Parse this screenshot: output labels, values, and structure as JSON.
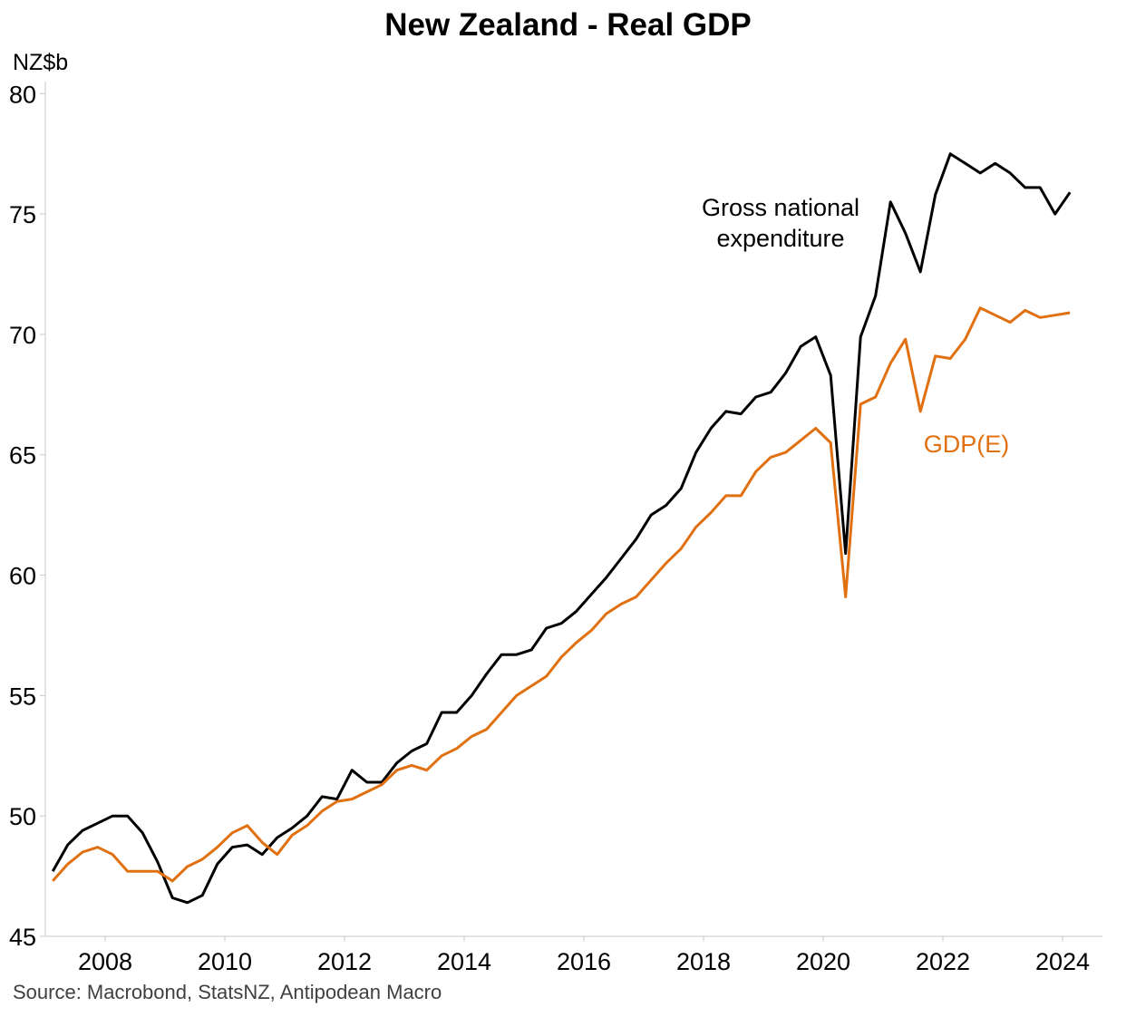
{
  "title": "New Zealand - Real GDP",
  "unit_label": "NZ$b",
  "source": "Source: Macrobond, StatsNZ, Antipodean Macro",
  "colors": {
    "gne": "#000000",
    "gdp": "#E07010",
    "axis": "#c8c8c8"
  },
  "annotations": {
    "gne_line1": "Gross national",
    "gne_line2": "expenditure",
    "gdp": "GDP(E)"
  },
  "chart_data": {
    "type": "line",
    "title": "New Zealand - Real GDP",
    "ylabel": "NZ$b",
    "xlabel": "",
    "ylim": [
      45,
      80.5
    ],
    "xlim": [
      "2007-01",
      "2024-09"
    ],
    "y_ticks": [
      45,
      50,
      55,
      60,
      65,
      70,
      75,
      80
    ],
    "x_ticks": [
      "2008",
      "2010",
      "2012",
      "2014",
      "2016",
      "2018",
      "2020",
      "2022",
      "2024"
    ],
    "x": [
      "2007Q1",
      "2007Q2",
      "2007Q3",
      "2007Q4",
      "2008Q1",
      "2008Q2",
      "2008Q3",
      "2008Q4",
      "2009Q1",
      "2009Q2",
      "2009Q3",
      "2009Q4",
      "2010Q1",
      "2010Q2",
      "2010Q3",
      "2010Q4",
      "2011Q1",
      "2011Q2",
      "2011Q3",
      "2011Q4",
      "2012Q1",
      "2012Q2",
      "2012Q3",
      "2012Q4",
      "2013Q1",
      "2013Q2",
      "2013Q3",
      "2013Q4",
      "2014Q1",
      "2014Q2",
      "2014Q3",
      "2014Q4",
      "2015Q1",
      "2015Q2",
      "2015Q3",
      "2015Q4",
      "2016Q1",
      "2016Q2",
      "2016Q3",
      "2016Q4",
      "2017Q1",
      "2017Q2",
      "2017Q3",
      "2017Q4",
      "2018Q1",
      "2018Q2",
      "2018Q3",
      "2018Q4",
      "2019Q1",
      "2019Q2",
      "2019Q3",
      "2019Q4",
      "2020Q1",
      "2020Q2",
      "2020Q3",
      "2020Q4",
      "2021Q1",
      "2021Q2",
      "2021Q3",
      "2021Q4",
      "2022Q1",
      "2022Q2",
      "2022Q3",
      "2022Q4",
      "2023Q1",
      "2023Q2",
      "2023Q3",
      "2023Q4",
      "2024Q1"
    ],
    "series": [
      {
        "name": "Gross national expenditure",
        "values": [
          47.7,
          48.8,
          49.4,
          49.7,
          50.0,
          50.0,
          49.3,
          48.1,
          46.6,
          46.4,
          46.7,
          48.0,
          48.7,
          48.8,
          48.4,
          49.1,
          49.5,
          50.0,
          50.8,
          50.7,
          51.9,
          51.4,
          51.4,
          52.2,
          52.7,
          53.0,
          54.3,
          54.3,
          55.0,
          55.9,
          56.7,
          56.7,
          56.9,
          57.8,
          58.0,
          58.5,
          59.2,
          59.9,
          60.7,
          61.5,
          62.5,
          62.9,
          63.6,
          65.1,
          66.1,
          66.8,
          66.7,
          67.4,
          67.6,
          68.4,
          69.5,
          69.9,
          68.3,
          60.9,
          69.9,
          71.6,
          75.5,
          74.2,
          72.6,
          75.8,
          77.5,
          77.1,
          76.7,
          77.1,
          76.7,
          76.1,
          76.1,
          75.0,
          75.9
        ]
      },
      {
        "name": "GDP(E)",
        "values": [
          47.3,
          48.0,
          48.5,
          48.7,
          48.4,
          47.7,
          47.7,
          47.7,
          47.3,
          47.9,
          48.2,
          48.7,
          49.3,
          49.6,
          48.9,
          48.4,
          49.2,
          49.6,
          50.2,
          50.6,
          50.7,
          51.0,
          51.3,
          51.9,
          52.1,
          51.9,
          52.5,
          52.8,
          53.3,
          53.6,
          54.3,
          55.0,
          55.4,
          55.8,
          56.6,
          57.2,
          57.7,
          58.4,
          58.8,
          59.1,
          59.8,
          60.5,
          61.1,
          62.0,
          62.6,
          63.3,
          63.3,
          64.3,
          64.9,
          65.1,
          65.6,
          66.1,
          65.5,
          59.1,
          67.1,
          67.4,
          68.8,
          69.8,
          66.8,
          69.1,
          69.0,
          69.8,
          71.1,
          70.8,
          70.5,
          71.0,
          70.7,
          70.8,
          70.9
        ]
      }
    ]
  }
}
